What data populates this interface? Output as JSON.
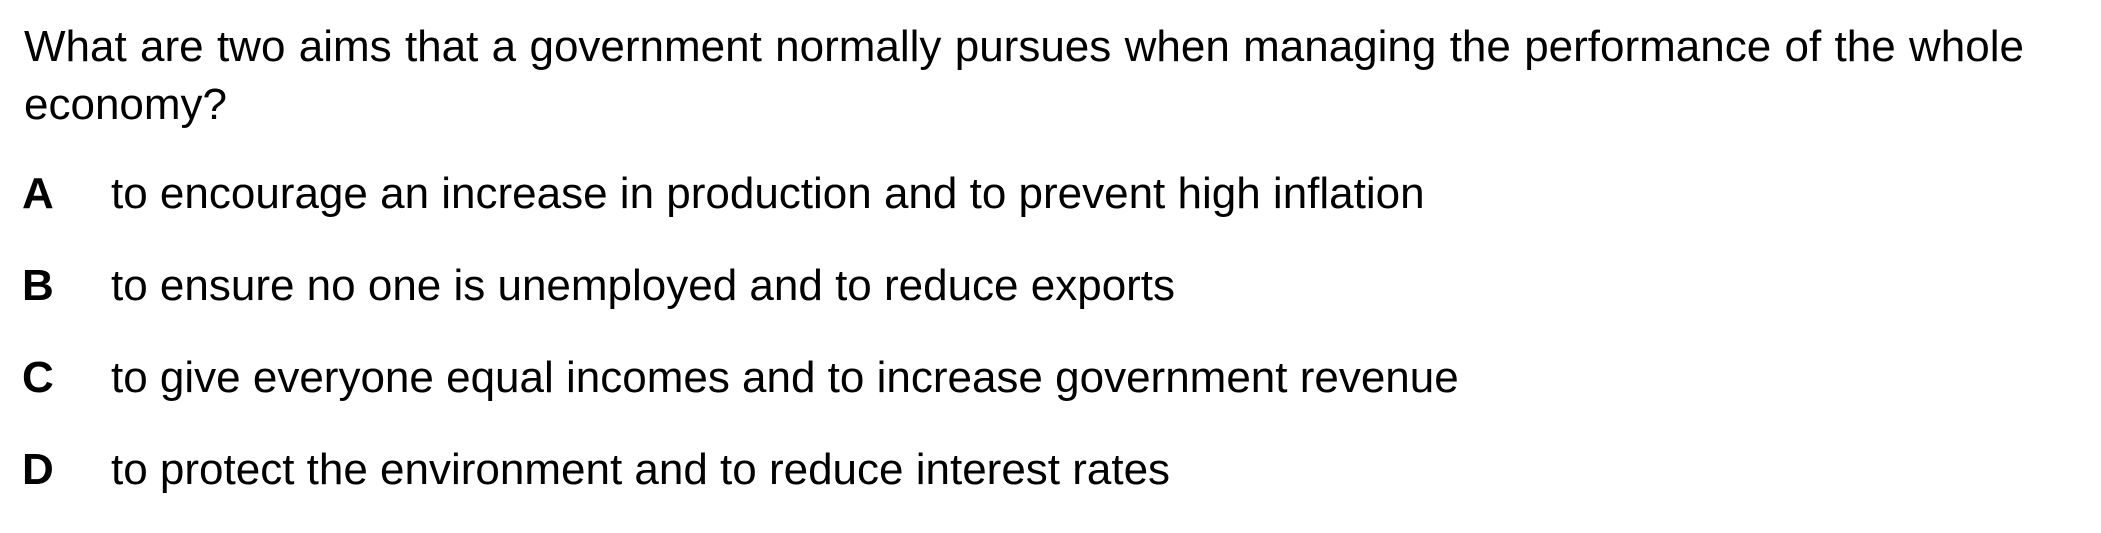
{
  "question": {
    "text": "What are two aims that a government normally pursues when managing the performance of the whole economy?"
  },
  "options": [
    {
      "letter": "A",
      "text": "to encourage an increase in production and to prevent high inflation"
    },
    {
      "letter": "B",
      "text": "to ensure no one is unemployed and to reduce exports"
    },
    {
      "letter": "C",
      "text": "to give everyone equal incomes and to increase government revenue"
    },
    {
      "letter": "D",
      "text": "to protect the environment and to reduce interest rates"
    }
  ]
}
